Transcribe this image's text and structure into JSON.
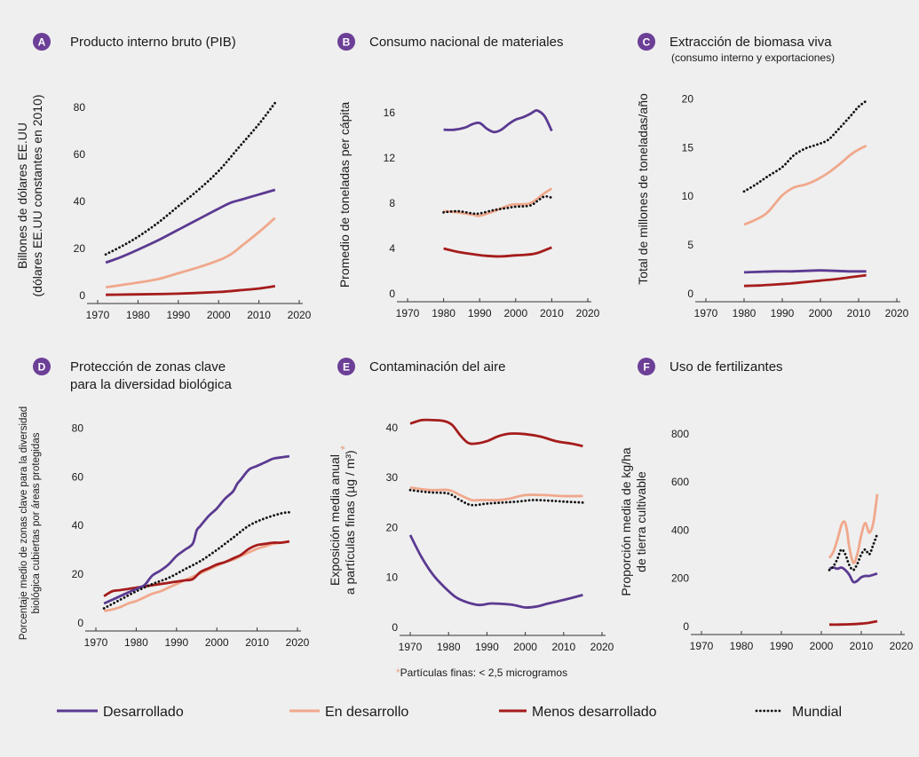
{
  "colors": {
    "desarrollado": "#5b3a91",
    "en_desarrollo": "#f0a88c",
    "menos_desarrollado": "#a51c1c",
    "mundial": "#111111",
    "badge": "#6c3f97",
    "asterisk": "#e8a27a"
  },
  "legend": {
    "desarrollado": "Desarrollado",
    "en_desarrollo": "En desarrollo",
    "menos_desarrollado": "Menos desarrollado",
    "mundial": "Mundial"
  },
  "footnote": {
    "star": "*",
    "text": "Partículas finas: < 2,5 microgramos"
  },
  "chart_data": [
    {
      "id": "A",
      "type": "line",
      "title": "Producto interno bruto (PIB)",
      "ylabel_line1": "Billones de dólares EE.UU",
      "ylabel_line2": "(dólares EE.UU constantes en 2010)",
      "xticks": [
        "1970",
        "1980",
        "1990",
        "2000",
        "2010",
        "2020"
      ],
      "yticks": [
        "0",
        "20",
        "40",
        "60",
        "80"
      ],
      "xlim": [
        1970,
        2020
      ],
      "ylim": [
        0,
        85
      ],
      "series": [
        {
          "key": "desarrollado",
          "x": [
            1972,
            1976,
            1980,
            1985,
            1990,
            1995,
            2000,
            2003,
            2006,
            2010,
            2014
          ],
          "y": [
            14,
            16.5,
            19.5,
            23.5,
            28,
            32.5,
            37,
            39.5,
            41,
            43,
            45
          ]
        },
        {
          "key": "en_desarrollo",
          "x": [
            1972,
            1976,
            1980,
            1985,
            1990,
            1995,
            2000,
            2003,
            2006,
            2010,
            2014
          ],
          "y": [
            3.5,
            4.5,
            5.5,
            7,
            9.5,
            12,
            15,
            17.5,
            21.5,
            27,
            33
          ]
        },
        {
          "key": "menos_desarrollado",
          "x": [
            1972,
            1980,
            1990,
            2000,
            2005,
            2010,
            2014
          ],
          "y": [
            0.3,
            0.5,
            0.8,
            1.5,
            2.2,
            3,
            4
          ]
        },
        {
          "key": "mundial",
          "x": [
            1972,
            1976,
            1980,
            1985,
            1990,
            1995,
            2000,
            2005,
            2010,
            2014
          ],
          "y": [
            17.5,
            21,
            25,
            31,
            38,
            45,
            53,
            63,
            73,
            82
          ]
        }
      ]
    },
    {
      "id": "B",
      "type": "line",
      "title": "Consumo nacional de materiales",
      "ylabel_line1": "Promedio de toneladas per cápita",
      "xticks": [
        "1970",
        "1980",
        "1990",
        "2000",
        "2010",
        "2020"
      ],
      "yticks": [
        "0",
        "4",
        "8",
        "12",
        "16"
      ],
      "xlim": [
        1970,
        2020
      ],
      "ylim": [
        0,
        17.5
      ],
      "series": [
        {
          "key": "desarrollado",
          "x": [
            1980,
            1983,
            1986,
            1988,
            1990,
            1992,
            1994,
            1996,
            1998,
            2000,
            2002,
            2004,
            2005,
            2006,
            2008,
            2010
          ],
          "y": [
            14.5,
            14.5,
            14.7,
            15.0,
            15.1,
            14.6,
            14.3,
            14.5,
            15.0,
            15.4,
            15.6,
            15.9,
            16.1,
            16.2,
            15.7,
            14.4
          ]
        },
        {
          "key": "en_desarrollo",
          "x": [
            1980,
            1984,
            1988,
            1990,
            1994,
            1998,
            2000,
            2004,
            2008,
            2010
          ],
          "y": [
            7.3,
            7.2,
            7.0,
            6.9,
            7.3,
            7.8,
            7.9,
            8.0,
            8.9,
            9.3
          ]
        },
        {
          "key": "menos_desarrollado",
          "x": [
            1980,
            1984,
            1988,
            1992,
            1996,
            2000,
            2003,
            2006,
            2010
          ],
          "y": [
            4.0,
            3.7,
            3.5,
            3.35,
            3.3,
            3.4,
            3.45,
            3.6,
            4.1
          ]
        },
        {
          "key": "mundial",
          "x": [
            1980,
            1984,
            1988,
            1990,
            1994,
            1998,
            2000,
            2004,
            2006,
            2008,
            2010
          ],
          "y": [
            7.2,
            7.3,
            7.1,
            7.1,
            7.4,
            7.6,
            7.7,
            7.8,
            8.2,
            8.6,
            8.5
          ]
        }
      ]
    },
    {
      "id": "C",
      "type": "line",
      "title": "Extracción de biomasa viva",
      "subtitle": "(consumo interno y exportaciones)",
      "ylabel_line1": "Total de millones de toneladas/año",
      "xticks": [
        "1970",
        "1980",
        "1990",
        "2000",
        "2010",
        "2020"
      ],
      "yticks": [
        "0",
        "5",
        "10",
        "15",
        "20"
      ],
      "xlim": [
        1970,
        2020
      ],
      "ylim": [
        0,
        21.5
      ],
      "series": [
        {
          "key": "desarrollado",
          "x": [
            1980,
            1984,
            1988,
            1992,
            1996,
            2000,
            2004,
            2008,
            2012
          ],
          "y": [
            2.2,
            2.25,
            2.3,
            2.3,
            2.35,
            2.4,
            2.35,
            2.3,
            2.3
          ]
        },
        {
          "key": "en_desarrollo",
          "x": [
            1980,
            1983,
            1986,
            1990,
            1993,
            1996,
            1999,
            2002,
            2005,
            2008,
            2010,
            2012
          ],
          "y": [
            7.1,
            7.6,
            8.3,
            10.1,
            10.9,
            11.2,
            11.7,
            12.4,
            13.3,
            14.3,
            14.8,
            15.2
          ]
        },
        {
          "key": "menos_desarrollado",
          "x": [
            1980,
            1984,
            1988,
            1992,
            1996,
            2000,
            2004,
            2008,
            2012
          ],
          "y": [
            0.8,
            0.85,
            0.95,
            1.05,
            1.2,
            1.35,
            1.5,
            1.7,
            1.9
          ]
        },
        {
          "key": "mundial",
          "x": [
            1980,
            1983,
            1986,
            1990,
            1993,
            1996,
            1999,
            2002,
            2005,
            2008,
            2010,
            2012
          ],
          "y": [
            10.5,
            11.2,
            12.0,
            13.0,
            14.2,
            14.9,
            15.3,
            15.8,
            17.0,
            18.3,
            19.2,
            19.8
          ]
        }
      ]
    },
    {
      "id": "D",
      "type": "line",
      "title": "Protección de zonas clave",
      "title_line2": "para la diversidad biológica",
      "ylabel_line1": "Porcentaje medio de zonas clave para la diversidad",
      "ylabel_line2": "biológica cubiertas por áreas protegidas",
      "xticks": [
        "1970",
        "1980",
        "1990",
        "2000",
        "2010",
        "2020"
      ],
      "yticks": [
        "0",
        "20",
        "40",
        "60",
        "80"
      ],
      "xlim": [
        1970,
        2020
      ],
      "ylim": [
        0,
        82
      ],
      "series": [
        {
          "key": "desarrollado",
          "x": [
            1972,
            1974,
            1976,
            1978,
            1980,
            1982,
            1984,
            1986,
            1988,
            1990,
            1992,
            1994,
            1995,
            1996,
            1998,
            2000,
            2002,
            2004,
            2005,
            2006,
            2008,
            2010,
            2012,
            2014,
            2016,
            2018
          ],
          "y": [
            8,
            9.5,
            11,
            12.5,
            14,
            15.5,
            19.5,
            21.5,
            24,
            27.5,
            30,
            32.5,
            38,
            40,
            44,
            47,
            51,
            54,
            57,
            59,
            63,
            64.5,
            66,
            67.5,
            68,
            68.5
          ]
        },
        {
          "key": "en_desarrollo",
          "x": [
            1972,
            1974,
            1976,
            1978,
            1980,
            1982,
            1984,
            1986,
            1988,
            1990,
            1992,
            1994,
            1996,
            1998,
            2000,
            2002,
            2004,
            2006,
            2008,
            2010,
            2012,
            2014,
            2016,
            2018
          ],
          "y": [
            5,
            5.5,
            6.5,
            8,
            9,
            10.5,
            12,
            13,
            14.5,
            16,
            17.5,
            19,
            20.5,
            22,
            23.5,
            25,
            26,
            27.5,
            29,
            30.5,
            31.5,
            32.5,
            33,
            33.5
          ]
        },
        {
          "key": "menos_desarrollado",
          "x": [
            1972,
            1974,
            1976,
            1978,
            1980,
            1982,
            1984,
            1986,
            1988,
            1990,
            1992,
            1994,
            1996,
            1998,
            2000,
            2002,
            2004,
            2006,
            2008,
            2010,
            2012,
            2014,
            2016,
            2018
          ],
          "y": [
            11,
            13,
            13.5,
            14,
            14.5,
            15,
            15.5,
            16,
            16.5,
            17,
            17.5,
            18,
            21,
            22.5,
            24,
            25,
            26.5,
            28,
            30.5,
            32,
            32.5,
            33,
            33,
            33.5
          ]
        },
        {
          "key": "mundial",
          "x": [
            1972,
            1976,
            1980,
            1984,
            1988,
            1992,
            1996,
            2000,
            2004,
            2008,
            2012,
            2016,
            2018
          ],
          "y": [
            6,
            9.5,
            13,
            16,
            18.5,
            22,
            25.5,
            30,
            35,
            40,
            43,
            45,
            45.5
          ]
        }
      ]
    },
    {
      "id": "E",
      "type": "line",
      "title": "Contaminación del aire",
      "ylabel_line1": "Exposición media anual",
      "ylabel_line2": "a partículas finas  (µg / m³)",
      "ylabel_star": "*",
      "xticks": [
        "1970",
        "1980",
        "1990",
        "2000",
        "2010",
        "2020"
      ],
      "yticks": [
        "0",
        "10",
        "20",
        "30",
        "40"
      ],
      "xlim": [
        1970,
        2020
      ],
      "ylim": [
        0,
        43
      ],
      "series": [
        {
          "key": "desarrollado",
          "x": [
            1970,
            1973,
            1976,
            1979,
            1982,
            1985,
            1988,
            1991,
            1994,
            1997,
            2000,
            2003,
            2006,
            2010,
            2015
          ],
          "y": [
            18.5,
            14,
            10.5,
            8,
            6,
            5,
            4.5,
            4.8,
            4.7,
            4.5,
            4,
            4.2,
            4.8,
            5.5,
            6.5
          ]
        },
        {
          "key": "en_desarrollo",
          "x": [
            1970,
            1975,
            1980,
            1983,
            1986,
            1988,
            1990,
            1993,
            1996,
            2000,
            2005,
            2010,
            2015
          ],
          "y": [
            28,
            27.5,
            27.5,
            26.5,
            25.5,
            25.5,
            25.5,
            25.5,
            25.8,
            26.5,
            26.5,
            26.3,
            26.3
          ]
        },
        {
          "key": "menos_desarrollado",
          "x": [
            1970,
            1973,
            1976,
            1979,
            1981,
            1983,
            1985,
            1987,
            1990,
            1993,
            1996,
            2000,
            2004,
            2008,
            2012,
            2015
          ],
          "y": [
            40.8,
            41.5,
            41.5,
            41.3,
            40.5,
            38.5,
            37,
            36.8,
            37.3,
            38.3,
            38.8,
            38.7,
            38.2,
            37.3,
            36.8,
            36.3
          ]
        },
        {
          "key": "mundial",
          "x": [
            1970,
            1973,
            1976,
            1980,
            1983,
            1986,
            1990,
            1994,
            1998,
            2002,
            2006,
            2010,
            2015
          ],
          "y": [
            27.5,
            27.2,
            27,
            26.8,
            25.5,
            24.5,
            24.8,
            25,
            25.2,
            25.5,
            25.4,
            25.2,
            25
          ]
        }
      ]
    },
    {
      "id": "F",
      "type": "line",
      "title": "Uso de fertilizantes",
      "ylabel_line1": "Proporción media de kg/ha",
      "ylabel_line2": "de tierra cultivable",
      "xticks": [
        "1970",
        "1980",
        "1990",
        "2000",
        "2010",
        "2020"
      ],
      "yticks": [
        "0",
        "200",
        "400",
        "600",
        "800"
      ],
      "xlim": [
        1970,
        2020
      ],
      "ylim": [
        0,
        870
      ],
      "series": [
        {
          "key": "desarrollado",
          "x": [
            2002,
            2003,
            2004,
            2005,
            2006,
            2007,
            2008,
            2009,
            2010,
            2011,
            2012,
            2013,
            2014
          ],
          "y": [
            240,
            245,
            240,
            245,
            235,
            215,
            185,
            190,
            205,
            210,
            210,
            215,
            220
          ]
        },
        {
          "key": "en_desarrollo",
          "x": [
            2002,
            2003,
            2004,
            2005,
            2005.5,
            2006,
            2006.5,
            2007,
            2008,
            2009,
            2010,
            2011,
            2012,
            2013,
            2014
          ],
          "y": [
            285,
            310,
            360,
            420,
            435,
            430,
            390,
            330,
            265,
            300,
            380,
            430,
            390,
            430,
            550
          ]
        },
        {
          "key": "menos_desarrollado",
          "x": [
            2002,
            2004,
            2006,
            2008,
            2010,
            2012,
            2014
          ],
          "y": [
            8,
            8,
            9,
            10,
            12,
            16,
            22
          ]
        },
        {
          "key": "mundial",
          "x": [
            2002,
            2003,
            2004,
            2005,
            2006,
            2007,
            2008,
            2009,
            2010,
            2011,
            2012,
            2013,
            2014
          ],
          "y": [
            235,
            250,
            280,
            320,
            300,
            255,
            235,
            260,
            300,
            320,
            300,
            340,
            385
          ]
        }
      ]
    }
  ]
}
